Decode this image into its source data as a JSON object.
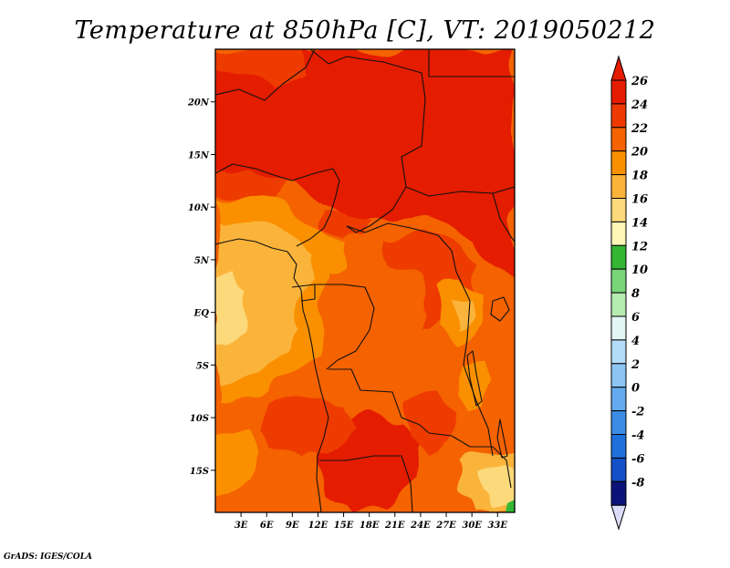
{
  "title": "Temperature at 850hPa [C], VT: 2019050212",
  "credit": "GrADS: IGES/COLA",
  "map": {
    "lon_range": [
      0,
      35
    ],
    "lat_range": [
      -19,
      25
    ],
    "lon_ticks": [
      {
        "lon": 3,
        "label": "3E"
      },
      {
        "lon": 6,
        "label": "6E"
      },
      {
        "lon": 9,
        "label": "9E"
      },
      {
        "lon": 12,
        "label": "12E"
      },
      {
        "lon": 15,
        "label": "15E"
      },
      {
        "lon": 18,
        "label": "18E"
      },
      {
        "lon": 21,
        "label": "21E"
      },
      {
        "lon": 24,
        "label": "24E"
      },
      {
        "lon": 27,
        "label": "27E"
      },
      {
        "lon": 30,
        "label": "30E"
      },
      {
        "lon": 33,
        "label": "33E"
      }
    ],
    "lat_ticks": [
      {
        "lat": 20,
        "label": "20N"
      },
      {
        "lat": 15,
        "label": "15N"
      },
      {
        "lat": 10,
        "label": "10N"
      },
      {
        "lat": 5,
        "label": "5N"
      },
      {
        "lat": 0,
        "label": "EQ"
      },
      {
        "lat": -5,
        "label": "5S"
      },
      {
        "lat": -10,
        "label": "10S"
      },
      {
        "lat": -15,
        "label": "15S"
      }
    ]
  },
  "colorbar": {
    "levels": [
      {
        "label": "26",
        "color": "#e41c00"
      },
      {
        "label": "24",
        "color": "#ee3a00"
      },
      {
        "label": "22",
        "color": "#f56200"
      },
      {
        "label": "20",
        "color": "#fa9000"
      },
      {
        "label": "18",
        "color": "#fbb43a"
      },
      {
        "label": "16",
        "color": "#fcd97a"
      },
      {
        "label": "14",
        "color": "#fdf6b5"
      },
      {
        "label": "12",
        "color": "#34b634"
      },
      {
        "label": "10",
        "color": "#78d678"
      },
      {
        "label": "8",
        "color": "#b6ebb0"
      },
      {
        "label": "6",
        "color": "#e2f6f4"
      },
      {
        "label": "4",
        "color": "#b4dcf8"
      },
      {
        "label": "2",
        "color": "#8cc4f4"
      },
      {
        "label": "0",
        "color": "#64aaee"
      },
      {
        "label": "-2",
        "color": "#3c8ce6"
      },
      {
        "label": "-4",
        "color": "#2070dc"
      },
      {
        "label": "-6",
        "color": "#1450c8"
      },
      {
        "label": "-8",
        "color": "#0a30a4"
      }
    ],
    "top_arrow_color": "#e41c00",
    "bottom_arrow_color": "#dcdcf8",
    "bottom_block_color": "#0a1478"
  }
}
